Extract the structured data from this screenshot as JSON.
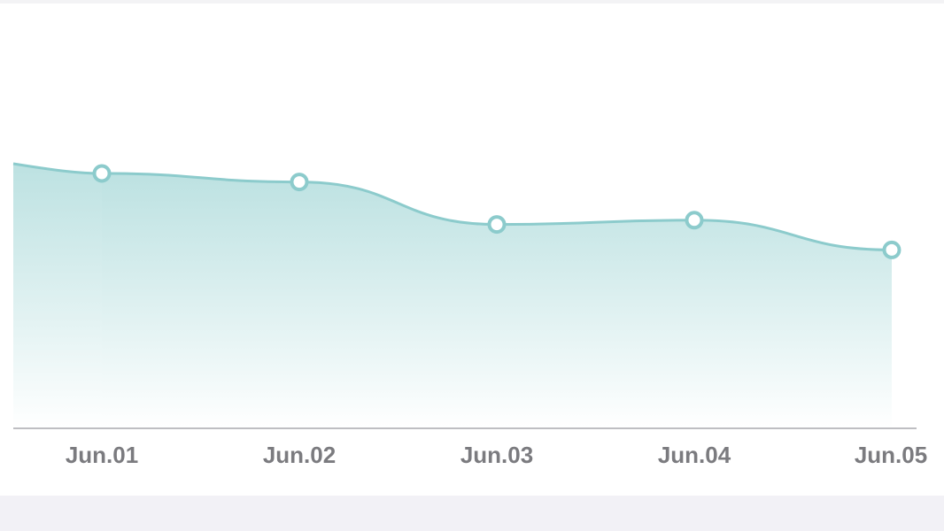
{
  "chart_data": {
    "type": "area",
    "categories": [
      "Jun.01",
      "Jun.02",
      "Jun.03",
      "Jun.04",
      "Jun.05"
    ],
    "values": [
      60,
      58,
      48,
      49,
      42
    ],
    "color": "#8ccbcc",
    "ylim": [
      0,
      100
    ]
  }
}
